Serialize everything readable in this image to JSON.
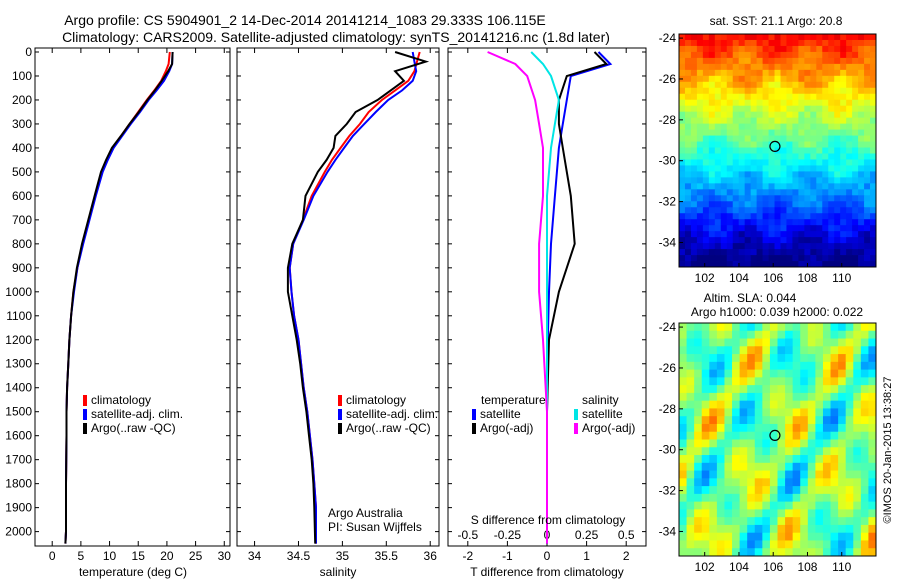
{
  "header": {
    "line1": "Argo profile: CS 5904901_2 14-Dec-2014 20141214_1083 29.333S 106.115E",
    "line2": "Climatology: CARS2009. Satellite-adjusted climatology: synTS_20141216.nc (1.8d later)"
  },
  "watermark": "©IMOS 20-Jan-2015 13:38:27",
  "colors": {
    "climatology": "#ff0000",
    "satellite": "#0000ff",
    "argo": "#000000",
    "sal_satellite": "#00e5e5",
    "sal_argo": "#ff00ff"
  },
  "chart_data": [
    {
      "type": "line",
      "id": "temperature",
      "xlabel": "temperature (deg C)",
      "ylabel": "",
      "xlim": [
        -3,
        31
      ],
      "ylim": [
        2060,
        0
      ],
      "xticks": [
        "0",
        "5",
        "10",
        "15",
        "20",
        "25",
        "30"
      ],
      "xtick_values": [
        0,
        5,
        10,
        15,
        20,
        25,
        30
      ],
      "yticks": [
        "0",
        "100",
        "200",
        "300",
        "400",
        "500",
        "600",
        "700",
        "800",
        "900",
        "1000",
        "1100",
        "1200",
        "1300",
        "1400",
        "1500",
        "1600",
        "1700",
        "1800",
        "1900",
        "2000"
      ],
      "ytick_values": [
        0,
        100,
        200,
        300,
        400,
        500,
        600,
        700,
        800,
        900,
        1000,
        1100,
        1200,
        1300,
        1400,
        1500,
        1600,
        1700,
        1800,
        1900,
        2000
      ],
      "legend": [
        "climatology",
        "satellite-adj. clim.",
        "Argo(..raw -QC)"
      ],
      "series": [
        {
          "name": "climatology",
          "color": "#ff0000",
          "x": [
            20.5,
            20.3,
            19.8,
            19.0,
            17.8,
            16.5,
            15.0,
            13.5,
            12.0,
            10.5,
            9.5,
            8.6,
            7.5,
            6.4,
            5.3,
            4.4,
            3.7,
            3.3,
            3.0,
            2.8,
            2.6,
            2.5,
            2.5,
            2.4,
            2.4,
            2.3
          ],
          "y": [
            0,
            50,
            80,
            120,
            160,
            200,
            250,
            300,
            350,
            400,
            450,
            500,
            600,
            700,
            800,
            900,
            1000,
            1100,
            1200,
            1300,
            1400,
            1500,
            1600,
            1800,
            2000,
            2050
          ]
        },
        {
          "name": "satellite-adj. clim.",
          "color": "#0000ff",
          "x": [
            21.0,
            20.9,
            20.4,
            19.5,
            18.2,
            16.8,
            15.3,
            13.7,
            12.2,
            10.7,
            9.7,
            8.8,
            7.6,
            6.5,
            5.4,
            4.4,
            3.8,
            3.3,
            3.0,
            2.8,
            2.6,
            2.5,
            2.5,
            2.4,
            2.4,
            2.3
          ],
          "y": [
            0,
            50,
            80,
            120,
            160,
            200,
            250,
            300,
            350,
            400,
            450,
            500,
            600,
            700,
            800,
            900,
            1000,
            1100,
            1200,
            1300,
            1400,
            1500,
            1600,
            1800,
            2000,
            2050
          ]
        },
        {
          "name": "Argo(..raw -QC)",
          "color": "#000000",
          "x": [
            21.0,
            20.9,
            20.2,
            19.1,
            17.9,
            16.6,
            15.1,
            13.5,
            12.0,
            10.4,
            9.4,
            8.5,
            7.4,
            6.3,
            5.2,
            4.3,
            3.7,
            3.3,
            3.0,
            2.8,
            2.6,
            2.5,
            2.5,
            2.4,
            2.4,
            2.3
          ],
          "y": [
            0,
            50,
            80,
            120,
            160,
            200,
            250,
            300,
            350,
            400,
            450,
            500,
            600,
            700,
            800,
            900,
            1000,
            1100,
            1200,
            1300,
            1400,
            1500,
            1600,
            1800,
            2000,
            2050
          ]
        }
      ]
    },
    {
      "type": "line",
      "id": "salinity",
      "xlabel": "salinity",
      "xlim": [
        33.8,
        36.1
      ],
      "ylim": [
        2060,
        0
      ],
      "xticks": [
        "34",
        "34.5",
        "35",
        "35.5",
        "36"
      ],
      "xtick_values": [
        34,
        34.5,
        35,
        35.5,
        36
      ],
      "legend": [
        "climatology",
        "satellite-adj. clim.",
        "Argo(..raw -QC)"
      ],
      "annotation": [
        "Argo Australia",
        "PI: Susan Wijffels"
      ],
      "series": [
        {
          "name": "climatology",
          "color": "#ff0000",
          "x": [
            35.88,
            35.85,
            35.82,
            35.75,
            35.6,
            35.45,
            35.3,
            35.2,
            35.08,
            34.98,
            34.88,
            34.8,
            34.65,
            34.55,
            34.44,
            34.4,
            34.42,
            34.45,
            34.5,
            34.53,
            34.56,
            34.6,
            34.63,
            34.66,
            34.68,
            34.7,
            34.7
          ],
          "y": [
            0,
            40,
            80,
            120,
            160,
            200,
            250,
            300,
            350,
            400,
            450,
            500,
            600,
            700,
            800,
            900,
            1000,
            1100,
            1200,
            1300,
            1400,
            1500,
            1600,
            1700,
            1800,
            1900,
            2050
          ]
        },
        {
          "name": "satellite-adj. clim.",
          "color": "#0000ff",
          "x": [
            35.8,
            35.82,
            35.84,
            35.8,
            35.68,
            35.52,
            35.38,
            35.25,
            35.12,
            35.02,
            34.92,
            34.83,
            34.67,
            34.56,
            34.44,
            34.4,
            34.42,
            34.45,
            34.5,
            34.53,
            34.56,
            34.6,
            34.63,
            34.66,
            34.68,
            34.7,
            34.7
          ],
          "y": [
            0,
            40,
            80,
            120,
            160,
            200,
            250,
            300,
            350,
            400,
            450,
            500,
            600,
            700,
            800,
            900,
            1000,
            1100,
            1200,
            1300,
            1400,
            1500,
            1600,
            1700,
            1800,
            1900,
            2050
          ]
        },
        {
          "name": "Argo(..raw -QC)",
          "color": "#000000",
          "x": [
            35.6,
            35.95,
            35.6,
            35.7,
            35.55,
            35.4,
            35.15,
            35.05,
            34.92,
            34.9,
            34.82,
            34.72,
            34.58,
            34.55,
            34.43,
            34.38,
            34.38,
            34.43,
            34.48,
            34.52,
            34.55,
            34.59,
            34.62,
            34.65,
            34.67,
            34.68,
            34.69
          ],
          "y": [
            0,
            40,
            80,
            120,
            160,
            200,
            250,
            300,
            350,
            400,
            450,
            500,
            600,
            700,
            800,
            900,
            1000,
            1100,
            1200,
            1300,
            1400,
            1500,
            1600,
            1700,
            1800,
            1900,
            2050
          ]
        }
      ]
    },
    {
      "type": "line",
      "id": "difference",
      "xlabel": "T difference from climatology",
      "xlabel2": "S difference from climatology",
      "xlim": [
        -2.5,
        2.5
      ],
      "ylim": [
        2060,
        0
      ],
      "xticks": [
        "-2",
        "-1",
        "0",
        "1",
        "2"
      ],
      "xtick_values": [
        -2,
        -1,
        0,
        1,
        2
      ],
      "xticks2": [
        "-0.5",
        "-0.25",
        "0",
        "0.25",
        "0.5"
      ],
      "xtick2_positions": [
        -2,
        -1,
        0,
        1,
        2
      ],
      "legend_left_title": "temperature",
      "legend_right_title": "salinity",
      "legend": [
        "satellite",
        "Argo(-adj)",
        "satellite",
        "Argo(-adj)"
      ],
      "series": [
        {
          "name": "satellite",
          "color": "#0000ff",
          "x": [
            1.3,
            1.6,
            0.6,
            0.5,
            0.4,
            0.3,
            0.25,
            0.2,
            0.1,
            0.05,
            0.02,
            0,
            0,
            0
          ],
          "y": [
            0,
            50,
            100,
            200,
            300,
            400,
            500,
            600,
            800,
            1000,
            1200,
            1500,
            1800,
            2050
          ]
        },
        {
          "name": "Argo(-adj)",
          "color": "#000000",
          "x": [
            1.2,
            1.5,
            0.5,
            0.3,
            0.3,
            0.4,
            0.5,
            0.6,
            0.7,
            0.3,
            0.05,
            0,
            0,
            0
          ],
          "y": [
            0,
            50,
            100,
            200,
            300,
            400,
            500,
            600,
            800,
            1000,
            1200,
            1500,
            1800,
            2050
          ]
        },
        {
          "name": "satellite",
          "color": "#00e5e5",
          "x": [
            -0.4,
            -0.1,
            0.1,
            0.3,
            0.2,
            0.1,
            0.05,
            0,
            0,
            0,
            0,
            0,
            0,
            0
          ],
          "y": [
            0,
            50,
            100,
            200,
            300,
            400,
            500,
            600,
            800,
            1000,
            1200,
            1500,
            1800,
            2050
          ]
        },
        {
          "name": "Argo(-adj)",
          "color": "#ff00ff",
          "x": [
            -1.5,
            -0.8,
            -0.5,
            -0.3,
            -0.2,
            -0.1,
            -0.1,
            -0.1,
            -0.2,
            -0.2,
            -0.1,
            0,
            0,
            0
          ],
          "y": [
            0,
            50,
            100,
            200,
            300,
            400,
            500,
            600,
            800,
            1000,
            1200,
            1500,
            1800,
            2050
          ]
        }
      ]
    },
    {
      "type": "heatmap",
      "id": "sst_map",
      "title": "sat. SST: 21.1  Argo: 20.8",
      "xlim": [
        100.5,
        112
      ],
      "ylim": [
        -35.2,
        -23.8
      ],
      "xticks": [
        "102",
        "104",
        "106",
        "108",
        "110"
      ],
      "xtick_values": [
        102,
        104,
        106,
        108,
        110
      ],
      "yticks": [
        "-24",
        "-26",
        "-28",
        "-30",
        "-32",
        "-34"
      ],
      "ytick_values": [
        -24,
        -26,
        -28,
        -30,
        -32,
        -34
      ],
      "marker": {
        "lon": 106.1,
        "lat": -29.3
      }
    },
    {
      "type": "heatmap",
      "id": "sla_map",
      "title": "Altim. SLA: 0.044",
      "subtitle": "Argo h1000: 0.039  h2000: 0.022",
      "xlim": [
        100.5,
        112
      ],
      "ylim": [
        -35.2,
        -23.8
      ],
      "xticks": [
        "102",
        "104",
        "106",
        "108",
        "110"
      ],
      "xtick_values": [
        102,
        104,
        106,
        108,
        110
      ],
      "yticks": [
        "-24",
        "-26",
        "-28",
        "-30",
        "-32",
        "-34"
      ],
      "ytick_values": [
        -24,
        -26,
        -28,
        -30,
        -32,
        -34
      ],
      "marker": {
        "lon": 106.1,
        "lat": -29.3
      }
    }
  ]
}
